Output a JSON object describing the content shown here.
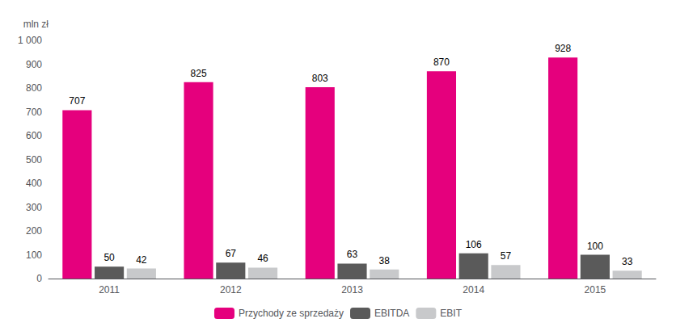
{
  "chart_data": {
    "type": "bar",
    "ylabel": "mln zł",
    "categories": [
      "2011",
      "2012",
      "2013",
      "2014",
      "2015"
    ],
    "series": [
      {
        "name": "Przychody ze sprzedaży",
        "color": "#E5007D",
        "values": [
          707,
          825,
          803,
          870,
          928
        ]
      },
      {
        "name": "EBITDA",
        "color": "#5A5A5A",
        "values": [
          50,
          67,
          63,
          106,
          100
        ]
      },
      {
        "name": "EBIT",
        "color": "#C8C9CB",
        "values": [
          42,
          46,
          38,
          57,
          33
        ]
      }
    ],
    "ylim": [
      0,
      1000
    ],
    "yticks": [
      0,
      100,
      200,
      300,
      400,
      500,
      600,
      700,
      800,
      900,
      {
        "value": 1000,
        "label": "1 000"
      }
    ],
    "grid": false,
    "legend": "bottom",
    "data_labels": true
  }
}
